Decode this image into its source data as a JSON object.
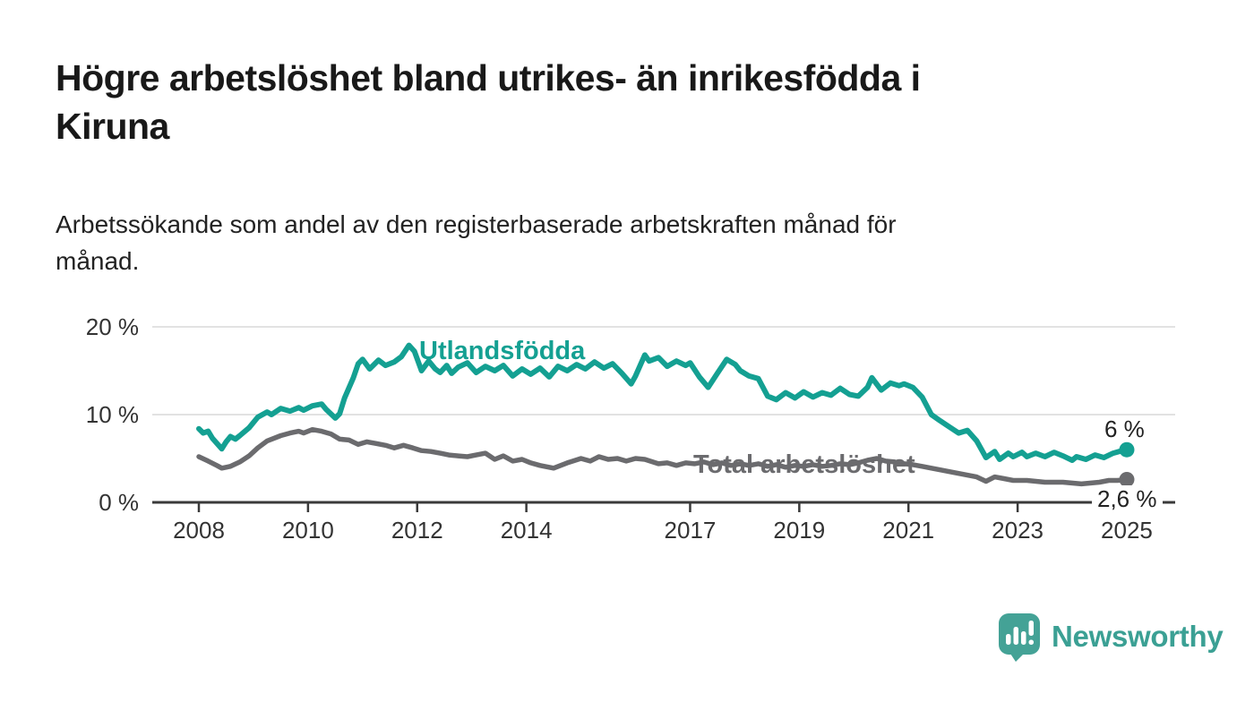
{
  "header": {
    "title": "Högre arbetslöshet bland utrikes- än inrikesfödda i Kiruna",
    "title_line1": "Högre arbetslöshet bland utrikes- än inrikesfödda i",
    "title_line2": "Kiruna",
    "subtitle": "Arbetssökande som andel av den registerbaserade arbetskraften månad för månad.",
    "subtitle_line1": "Arbetssökande som andel av den registerbaserade arbetskraften månad för",
    "subtitle_line2": "månad."
  },
  "footer": {
    "brand": "Newsworthy",
    "brand_color": "#3BA094",
    "logo_icon": "speech-bubble-bar-chart-icon"
  },
  "chart_data": {
    "type": "line",
    "title": "Högre arbetslöshet bland utrikes- än inrikesfödda i Kiruna",
    "subtitle": "Arbetssökande som andel av den registerbaserade arbetskraften månad för månad.",
    "xlabel": "",
    "ylabel": "",
    "xlim": [
      2007.5,
      2025.45
    ],
    "ylim": [
      0,
      20
    ],
    "grid": "horizontal",
    "legend_position": "inline-labels",
    "x_ticks": [
      2008,
      2010,
      2012,
      2014,
      2017,
      2019,
      2021,
      2023,
      2025
    ],
    "x_tick_labels": [
      "2008",
      "2010",
      "2012",
      "2014",
      "2017",
      "2019",
      "2021",
      "2023",
      "2025"
    ],
    "y_ticks": [
      0,
      10,
      20
    ],
    "y_tick_labels": [
      "0 %",
      "10 %",
      "20 %"
    ],
    "axis_color": "#3A3A3A",
    "gridline_color": "#D9D9D9",
    "series": [
      {
        "name": "Utlandsfödda",
        "label_text": "Utlandsfödda",
        "color": "#14A092",
        "end_label": "6 %",
        "end_value": 6.0,
        "points": [
          [
            2008.0,
            8.4
          ],
          [
            2008.08,
            7.9
          ],
          [
            2008.17,
            8.1
          ],
          [
            2008.25,
            7.3
          ],
          [
            2008.42,
            6.1
          ],
          [
            2008.5,
            6.9
          ],
          [
            2008.58,
            7.5
          ],
          [
            2008.67,
            7.2
          ],
          [
            2008.75,
            7.6
          ],
          [
            2008.92,
            8.5
          ],
          [
            2009.08,
            9.7
          ],
          [
            2009.25,
            10.3
          ],
          [
            2009.33,
            10.0
          ],
          [
            2009.5,
            10.7
          ],
          [
            2009.67,
            10.4
          ],
          [
            2009.83,
            10.8
          ],
          [
            2009.92,
            10.5
          ],
          [
            2010.08,
            11.0
          ],
          [
            2010.25,
            11.2
          ],
          [
            2010.33,
            10.6
          ],
          [
            2010.5,
            9.6
          ],
          [
            2010.58,
            10.1
          ],
          [
            2010.67,
            11.9
          ],
          [
            2010.83,
            14.2
          ],
          [
            2010.92,
            15.8
          ],
          [
            2011.0,
            16.3
          ],
          [
            2011.13,
            15.2
          ],
          [
            2011.29,
            16.2
          ],
          [
            2011.42,
            15.6
          ],
          [
            2011.58,
            16.0
          ],
          [
            2011.71,
            16.6
          ],
          [
            2011.85,
            17.9
          ],
          [
            2011.95,
            17.2
          ],
          [
            2012.08,
            15.0
          ],
          [
            2012.21,
            16.1
          ],
          [
            2012.33,
            15.2
          ],
          [
            2012.42,
            14.8
          ],
          [
            2012.54,
            15.6
          ],
          [
            2012.63,
            14.7
          ],
          [
            2012.75,
            15.4
          ],
          [
            2012.92,
            15.9
          ],
          [
            2013.08,
            14.8
          ],
          [
            2013.25,
            15.5
          ],
          [
            2013.42,
            15.0
          ],
          [
            2013.58,
            15.6
          ],
          [
            2013.75,
            14.4
          ],
          [
            2013.92,
            15.2
          ],
          [
            2014.08,
            14.6
          ],
          [
            2014.25,
            15.3
          ],
          [
            2014.42,
            14.3
          ],
          [
            2014.58,
            15.5
          ],
          [
            2014.75,
            15.0
          ],
          [
            2014.92,
            15.7
          ],
          [
            2015.08,
            15.2
          ],
          [
            2015.25,
            16.0
          ],
          [
            2015.42,
            15.3
          ],
          [
            2015.58,
            15.8
          ],
          [
            2015.75,
            14.7
          ],
          [
            2015.92,
            13.5
          ],
          [
            2016.0,
            14.4
          ],
          [
            2016.17,
            16.8
          ],
          [
            2016.25,
            16.1
          ],
          [
            2016.42,
            16.5
          ],
          [
            2016.58,
            15.5
          ],
          [
            2016.75,
            16.1
          ],
          [
            2016.92,
            15.6
          ],
          [
            2017.0,
            15.9
          ],
          [
            2017.17,
            14.3
          ],
          [
            2017.33,
            13.1
          ],
          [
            2017.5,
            14.7
          ],
          [
            2017.67,
            16.3
          ],
          [
            2017.83,
            15.7
          ],
          [
            2017.92,
            15.0
          ],
          [
            2018.08,
            14.4
          ],
          [
            2018.25,
            14.1
          ],
          [
            2018.42,
            12.1
          ],
          [
            2018.58,
            11.7
          ],
          [
            2018.75,
            12.5
          ],
          [
            2018.92,
            11.9
          ],
          [
            2019.08,
            12.6
          ],
          [
            2019.25,
            12.0
          ],
          [
            2019.42,
            12.5
          ],
          [
            2019.58,
            12.2
          ],
          [
            2019.75,
            13.0
          ],
          [
            2019.92,
            12.3
          ],
          [
            2020.08,
            12.1
          ],
          [
            2020.25,
            13.1
          ],
          [
            2020.33,
            14.2
          ],
          [
            2020.5,
            12.8
          ],
          [
            2020.67,
            13.6
          ],
          [
            2020.83,
            13.3
          ],
          [
            2020.92,
            13.5
          ],
          [
            2021.08,
            13.1
          ],
          [
            2021.25,
            12.0
          ],
          [
            2021.42,
            10.0
          ],
          [
            2021.58,
            9.3
          ],
          [
            2021.75,
            8.6
          ],
          [
            2021.92,
            7.9
          ],
          [
            2022.08,
            8.2
          ],
          [
            2022.25,
            7.0
          ],
          [
            2022.42,
            5.1
          ],
          [
            2022.58,
            5.8
          ],
          [
            2022.67,
            4.9
          ],
          [
            2022.83,
            5.6
          ],
          [
            2022.92,
            5.2
          ],
          [
            2023.08,
            5.7
          ],
          [
            2023.17,
            5.2
          ],
          [
            2023.33,
            5.6
          ],
          [
            2023.5,
            5.2
          ],
          [
            2023.67,
            5.7
          ],
          [
            2023.83,
            5.3
          ],
          [
            2024.0,
            4.8
          ],
          [
            2024.08,
            5.2
          ],
          [
            2024.25,
            4.9
          ],
          [
            2024.42,
            5.4
          ],
          [
            2024.58,
            5.1
          ],
          [
            2024.75,
            5.6
          ],
          [
            2024.92,
            5.9
          ],
          [
            2025.0,
            6.0
          ]
        ]
      },
      {
        "name": "Total arbetslöshet",
        "label_text": "Total arbetslöshet",
        "color": "#6B6B6E",
        "end_label": "2,6 %",
        "end_value": 2.6,
        "points": [
          [
            2008.0,
            5.2
          ],
          [
            2008.17,
            4.7
          ],
          [
            2008.33,
            4.2
          ],
          [
            2008.42,
            3.9
          ],
          [
            2008.58,
            4.1
          ],
          [
            2008.75,
            4.6
          ],
          [
            2008.92,
            5.3
          ],
          [
            2009.08,
            6.2
          ],
          [
            2009.25,
            7.0
          ],
          [
            2009.5,
            7.6
          ],
          [
            2009.67,
            7.9
          ],
          [
            2009.83,
            8.1
          ],
          [
            2009.92,
            7.9
          ],
          [
            2010.08,
            8.3
          ],
          [
            2010.25,
            8.1
          ],
          [
            2010.42,
            7.8
          ],
          [
            2010.58,
            7.2
          ],
          [
            2010.75,
            7.1
          ],
          [
            2010.92,
            6.6
          ],
          [
            2011.08,
            6.9
          ],
          [
            2011.25,
            6.7
          ],
          [
            2011.42,
            6.5
          ],
          [
            2011.58,
            6.2
          ],
          [
            2011.75,
            6.5
          ],
          [
            2011.92,
            6.2
          ],
          [
            2012.08,
            5.9
          ],
          [
            2012.25,
            5.8
          ],
          [
            2012.42,
            5.6
          ],
          [
            2012.58,
            5.4
          ],
          [
            2012.75,
            5.3
          ],
          [
            2012.92,
            5.2
          ],
          [
            2013.08,
            5.4
          ],
          [
            2013.25,
            5.6
          ],
          [
            2013.42,
            4.9
          ],
          [
            2013.58,
            5.3
          ],
          [
            2013.75,
            4.7
          ],
          [
            2013.92,
            4.9
          ],
          [
            2014.08,
            4.5
          ],
          [
            2014.25,
            4.2
          ],
          [
            2014.5,
            3.9
          ],
          [
            2014.75,
            4.5
          ],
          [
            2015.0,
            5.0
          ],
          [
            2015.17,
            4.7
          ],
          [
            2015.33,
            5.2
          ],
          [
            2015.5,
            4.9
          ],
          [
            2015.67,
            5.0
          ],
          [
            2015.83,
            4.7
          ],
          [
            2016.0,
            5.0
          ],
          [
            2016.17,
            4.9
          ],
          [
            2016.42,
            4.4
          ],
          [
            2016.58,
            4.5
          ],
          [
            2016.75,
            4.2
          ],
          [
            2016.92,
            4.5
          ],
          [
            2017.08,
            4.4
          ],
          [
            2017.25,
            4.6
          ],
          [
            2017.42,
            4.3
          ],
          [
            2017.58,
            4.5
          ],
          [
            2017.75,
            4.2
          ],
          [
            2017.92,
            4.4
          ],
          [
            2018.08,
            4.2
          ],
          [
            2018.25,
            4.4
          ],
          [
            2018.42,
            4.1
          ],
          [
            2018.58,
            4.3
          ],
          [
            2018.75,
            4.0
          ],
          [
            2018.92,
            4.2
          ],
          [
            2019.08,
            4.1
          ],
          [
            2019.25,
            4.3
          ],
          [
            2019.42,
            4.1
          ],
          [
            2019.58,
            4.2
          ],
          [
            2019.75,
            4.4
          ],
          [
            2019.92,
            4.3
          ],
          [
            2020.08,
            4.5
          ],
          [
            2020.25,
            4.8
          ],
          [
            2020.42,
            5.0
          ],
          [
            2020.58,
            4.7
          ],
          [
            2020.75,
            4.6
          ],
          [
            2020.92,
            4.4
          ],
          [
            2021.08,
            4.3
          ],
          [
            2021.25,
            4.1
          ],
          [
            2021.42,
            3.9
          ],
          [
            2021.58,
            3.7
          ],
          [
            2021.75,
            3.5
          ],
          [
            2021.92,
            3.3
          ],
          [
            2022.08,
            3.1
          ],
          [
            2022.25,
            2.9
          ],
          [
            2022.42,
            2.4
          ],
          [
            2022.58,
            2.9
          ],
          [
            2022.75,
            2.7
          ],
          [
            2022.92,
            2.5
          ],
          [
            2023.17,
            2.5
          ],
          [
            2023.5,
            2.3
          ],
          [
            2023.83,
            2.3
          ],
          [
            2024.17,
            2.1
          ],
          [
            2024.5,
            2.3
          ],
          [
            2024.67,
            2.5
          ],
          [
            2024.83,
            2.5
          ],
          [
            2025.0,
            2.6
          ]
        ]
      }
    ]
  }
}
